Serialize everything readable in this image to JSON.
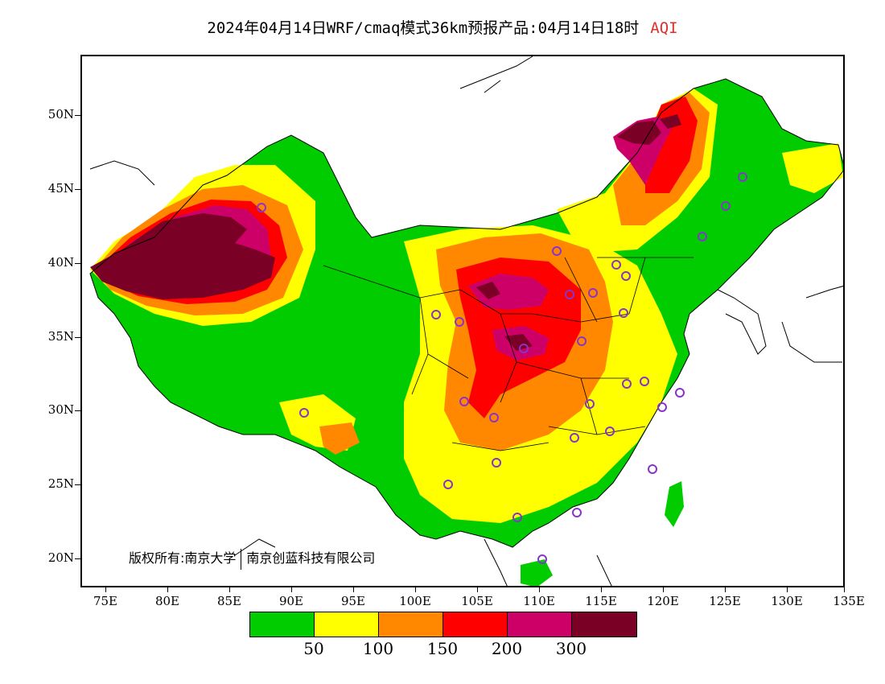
{
  "title": {
    "main": "2024年04月14日WRF/cmaq模式36km预报产品:04月14日18时",
    "variable": "AQI",
    "variable_color": "#e0302e"
  },
  "axes": {
    "lat_labels": [
      "50N",
      "45N",
      "40N",
      "35N",
      "30N",
      "25N",
      "20N"
    ],
    "lon_labels": [
      "75E",
      "80E",
      "85E",
      "90E",
      "95E",
      "100E",
      "105E",
      "110E",
      "115E",
      "120E",
      "125E",
      "130E",
      "135E"
    ]
  },
  "copyright": {
    "owner_prefix": "版权所有:南京大学",
    "company": "南京创蓝科技有限公司"
  },
  "legend": {
    "colors": [
      "#00cc00",
      "#ffff00",
      "#ff8800",
      "#ff0000",
      "#cc0066",
      "#7a0026"
    ],
    "labels": [
      "50",
      "100",
      "150",
      "200",
      "300"
    ]
  },
  "map": {
    "region": "China",
    "colors": {
      "good": "#00cc00",
      "moderate": "#ffff00",
      "unhealthy_sensitive": "#ff8800",
      "unhealthy": "#ff0000",
      "very_unhealthy": "#cc0066",
      "hazardous": "#7a0026",
      "station_marker": "#8833cc",
      "boundary": "#000000"
    }
  }
}
